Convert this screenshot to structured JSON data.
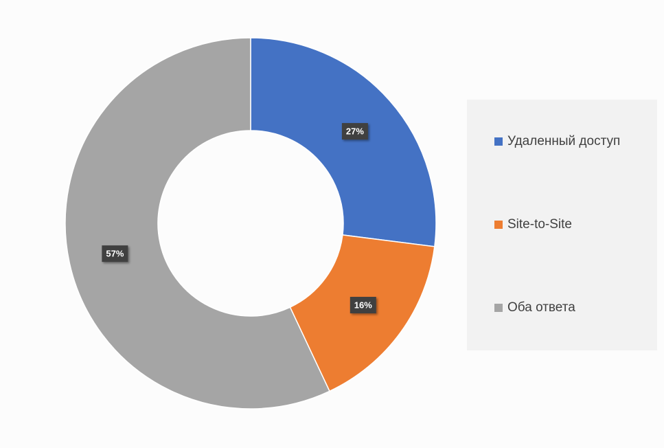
{
  "chart_data": {
    "type": "donut",
    "categories": [
      "Удаленный доступ",
      "Site-to-Site",
      "Оба ответа"
    ],
    "values": [
      27,
      16,
      57
    ],
    "value_labels": [
      "27%",
      "16%",
      "57%"
    ],
    "colors": [
      "#4472c4",
      "#ed7d31",
      "#a5a5a5"
    ],
    "legend": "right"
  }
}
